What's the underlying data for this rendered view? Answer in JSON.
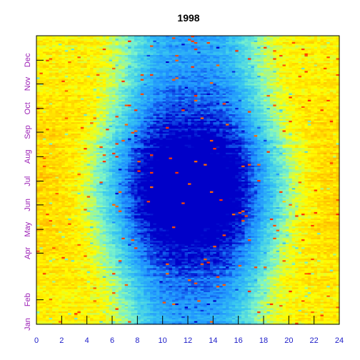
{
  "chart_data": {
    "type": "heatmap",
    "title": "1998",
    "xlabel": "",
    "ylabel": "",
    "x_range": [
      0,
      24
    ],
    "x_ticks": [
      "0",
      "2",
      "4",
      "6",
      "8",
      "10",
      "12",
      "14",
      "16",
      "18",
      "20",
      "22",
      "24"
    ],
    "y_range": [
      "Jan",
      "Dec"
    ],
    "y_ticks": [
      "Jan",
      "Feb",
      "Apr",
      "May",
      "Jun",
      "Jul",
      "Aug",
      "Sep",
      "Oct",
      "Nov",
      "Dec"
    ],
    "y_tick_days": [
      1,
      32,
      91,
      121,
      152,
      182,
      213,
      244,
      274,
      305,
      335
    ],
    "colorscale": [
      "#0000c8",
      "#1e90ff",
      "#39c8f0",
      "#7ff5c8",
      "#ffff00",
      "#ffb400",
      "#ff2a00"
    ],
    "pattern": "hourly values by day of year; low (blue) mid-day peak around hour 12 that is strongest in summer, high (yellow-orange-red) at night",
    "grid": false,
    "legend": "none"
  }
}
